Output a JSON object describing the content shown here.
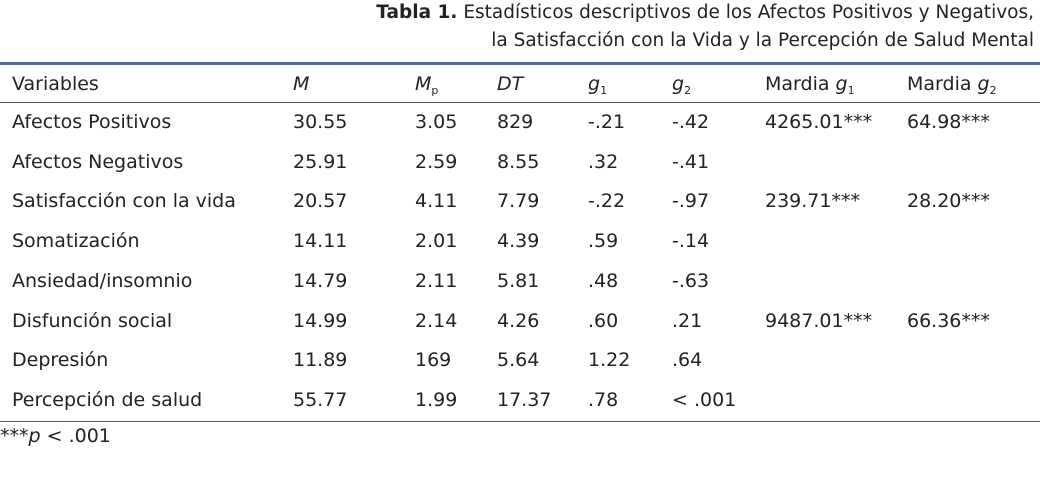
{
  "caption": {
    "label": "Tabla 1.",
    "lines": [
      "Estadísticos descriptivos de los Afectos Positivos y Negativos,",
      "la Satisfacción con la Vida y la Percepción de Salud Mental"
    ]
  },
  "table": {
    "header": [
      {
        "text": "Variables"
      },
      {
        "symbol": "M"
      },
      {
        "symbol": "M",
        "sub": "p"
      },
      {
        "symbol": "DT"
      },
      {
        "symbol": "g",
        "sub": "1"
      },
      {
        "symbol": "g",
        "sub": "2"
      },
      {
        "text": "Mardia",
        "symbol": "g",
        "sub": "1"
      },
      {
        "text": "Mardia",
        "symbol": "g",
        "sub": "2"
      }
    ],
    "rows": [
      [
        "Afectos Positivos",
        "30.55",
        "3.05",
        "829",
        "-.21",
        "-.42",
        "4265.01***",
        "64.98***"
      ],
      [
        "Afectos Negativos",
        "25.91",
        "2.59",
        "8.55",
        ".32",
        "-.41",
        null,
        null
      ],
      [
        "Satisfacción con la vida",
        "20.57",
        "4.11",
        "7.79",
        "-.22",
        "-.97",
        "239.71***",
        "28.20***"
      ],
      [
        "Somatización",
        "14.11",
        "2.01",
        "4.39",
        ".59",
        "-.14",
        null,
        null
      ],
      [
        "Ansiedad/insomnio",
        "14.79",
        "2.11",
        "5.81",
        ".48",
        "-.63",
        null,
        null
      ],
      [
        "Disfunción social",
        "14.99",
        "2.14",
        "4.26",
        ".60",
        ".21",
        "9487.01***",
        "66.36***"
      ],
      [
        "Depresión",
        "11.89",
        "169",
        "5.64",
        "1.22",
        ".64",
        null,
        null
      ],
      [
        "Percepción de salud",
        "55.77",
        "1.99",
        "17.37",
        ".78",
        "< .001",
        null,
        null
      ]
    ]
  },
  "footnote": {
    "stars": "***",
    "symbol": "p",
    "text": "< .001"
  }
}
